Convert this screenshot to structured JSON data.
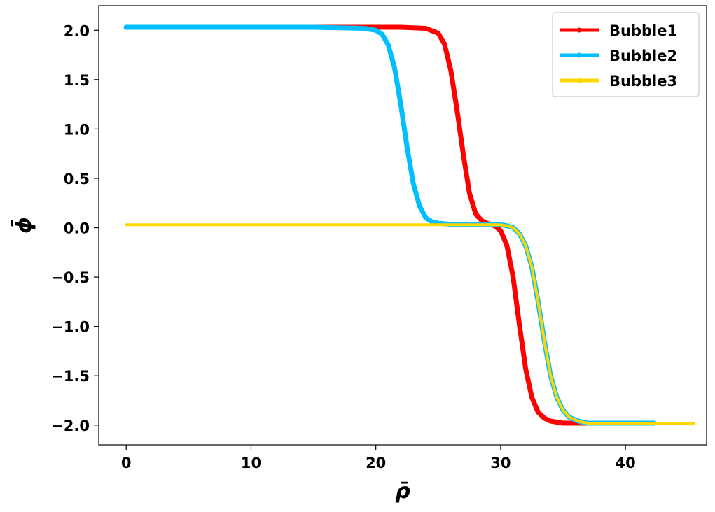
{
  "chart_data": {
    "type": "line",
    "title": "",
    "xlabel": "ρ̄",
    "ylabel": "ϕ̄",
    "xlim": [
      -2.2,
      46.5
    ],
    "ylim": [
      -2.2,
      2.25
    ],
    "x_ticks": [
      0,
      10,
      20,
      30,
      40
    ],
    "x_tick_labels": [
      "0",
      "10",
      "20",
      "30",
      "40"
    ],
    "y_ticks": [
      2.0,
      1.5,
      1.0,
      0.5,
      0.0,
      -0.5,
      -1.0,
      -1.5,
      -2.0
    ],
    "y_tick_labels": [
      "2.0",
      "1.5",
      "1.0",
      "0.5",
      "0.0",
      "−0.5",
      "−1.0",
      "−1.5",
      "−2.0"
    ],
    "grid": false,
    "legend_position": "top-right",
    "series": [
      {
        "name": "Bubble1",
        "color": "#ff0000",
        "x": [
          0,
          5,
          10,
          15,
          20,
          22,
          24,
          25,
          25.5,
          26,
          26.5,
          27,
          27.5,
          28,
          28.5,
          29,
          29.5,
          30,
          30.5,
          31,
          31.5,
          32,
          32.5,
          33,
          33.5,
          34,
          35,
          36,
          38,
          40,
          42.3
        ],
        "y": [
          2.03,
          2.03,
          2.03,
          2.03,
          2.03,
          2.03,
          2.02,
          1.97,
          1.86,
          1.6,
          1.2,
          0.75,
          0.35,
          0.14,
          0.07,
          0.04,
          0.02,
          -0.03,
          -0.18,
          -0.5,
          -0.98,
          -1.43,
          -1.72,
          -1.87,
          -1.93,
          -1.96,
          -1.98,
          -1.98,
          -1.98,
          -1.98,
          -1.98
        ]
      },
      {
        "name": "Bubble2",
        "color": "#00bfff",
        "x": [
          0,
          5,
          10,
          15,
          19,
          20,
          20.5,
          21,
          21.5,
          22,
          22.5,
          23,
          23.5,
          24,
          24.5,
          25,
          25.5,
          26,
          27,
          28,
          29,
          30,
          30.5,
          31,
          31.5,
          32,
          32.5,
          33,
          33.5,
          34,
          34.5,
          35,
          35.5,
          36,
          36.5,
          37,
          37.5,
          38,
          39,
          40,
          42.3
        ],
        "y": [
          2.03,
          2.03,
          2.03,
          2.03,
          2.02,
          2.0,
          1.96,
          1.85,
          1.62,
          1.25,
          0.82,
          0.45,
          0.22,
          0.1,
          0.06,
          0.045,
          0.04,
          0.035,
          0.035,
          0.035,
          0.033,
          0.03,
          0.02,
          0.0,
          -0.06,
          -0.18,
          -0.4,
          -0.75,
          -1.15,
          -1.5,
          -1.72,
          -1.85,
          -1.92,
          -1.95,
          -1.97,
          -1.98,
          -1.98,
          -1.98,
          -1.98,
          -1.98,
          -1.98
        ]
      },
      {
        "name": "Bubble3",
        "color": "#ffd700",
        "x": [
          0,
          10,
          20,
          29,
          30,
          30.5,
          31,
          31.5,
          32,
          32.5,
          33,
          33.5,
          34,
          34.5,
          35,
          35.5,
          36,
          36.5,
          37,
          37.5,
          38,
          39,
          40,
          42,
          45.5
        ],
        "y": [
          0.03,
          0.03,
          0.03,
          0.03,
          0.03,
          0.02,
          0.0,
          -0.06,
          -0.18,
          -0.4,
          -0.75,
          -1.15,
          -1.5,
          -1.72,
          -1.85,
          -1.92,
          -1.95,
          -1.97,
          -1.98,
          -1.98,
          -1.98,
          -1.98,
          -1.98,
          -1.98,
          -1.98
        ]
      }
    ]
  }
}
